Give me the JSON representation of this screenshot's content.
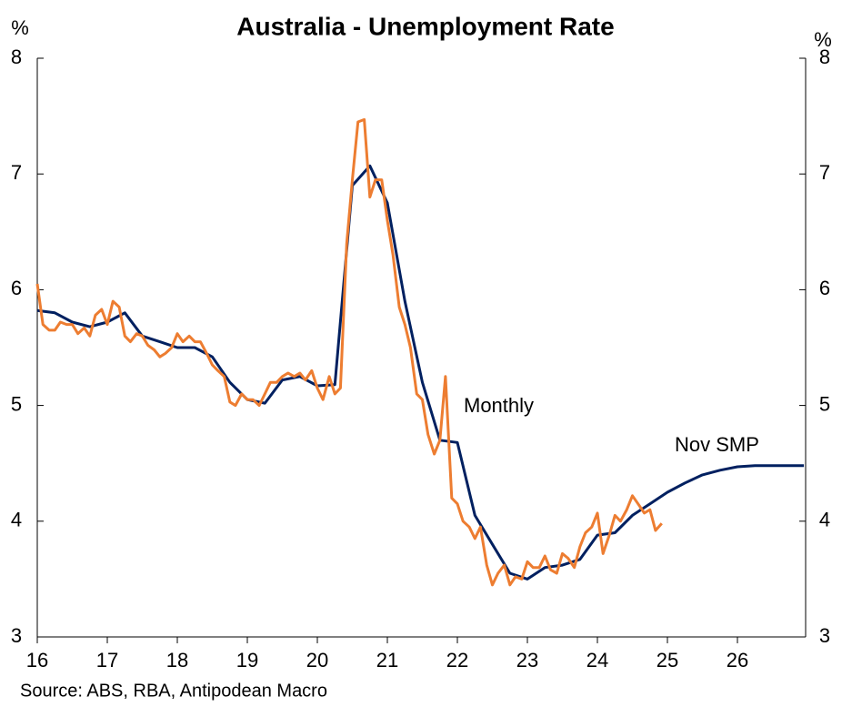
{
  "chart_data": {
    "type": "line",
    "title": "Australia - Unemployment Rate",
    "y_label": "%",
    "y2_label": "%",
    "source": "Source: ABS, RBA, Antipodean Macro",
    "xlim": [
      16,
      27
    ],
    "xticks": [
      16,
      17,
      18,
      19,
      20,
      21,
      22,
      23,
      24,
      25,
      26
    ],
    "ylim": [
      3,
      8
    ],
    "yticks": [
      3,
      4,
      5,
      6,
      7,
      8
    ],
    "y2lim": [
      3,
      8
    ],
    "y2ticks": [
      3,
      4,
      5,
      6,
      7,
      8
    ],
    "series": [
      {
        "name": "Monthly",
        "color": "#ED7D31",
        "x": [
          16,
          16.08,
          16.17,
          16.25,
          16.33,
          16.42,
          16.5,
          16.58,
          16.67,
          16.75,
          16.83,
          16.92,
          17,
          17.08,
          17.17,
          17.25,
          17.33,
          17.42,
          17.5,
          17.58,
          17.67,
          17.75,
          17.83,
          17.92,
          18,
          18.08,
          18.17,
          18.25,
          18.33,
          18.42,
          18.5,
          18.58,
          18.67,
          18.75,
          18.83,
          18.92,
          19,
          19.08,
          19.17,
          19.25,
          19.33,
          19.42,
          19.5,
          19.58,
          19.67,
          19.75,
          19.83,
          19.92,
          20,
          20.08,
          20.17,
          20.25,
          20.33,
          20.42,
          20.5,
          20.58,
          20.67,
          20.75,
          20.83,
          20.92,
          21,
          21.08,
          21.17,
          21.25,
          21.33,
          21.42,
          21.5,
          21.58,
          21.67,
          21.75,
          21.83,
          21.92,
          22,
          22.08,
          22.17,
          22.25,
          22.33,
          22.42,
          22.5,
          22.58,
          22.67,
          22.75,
          22.83,
          22.92,
          23,
          23.08,
          23.17,
          23.25,
          23.33,
          23.42,
          23.5,
          23.58,
          23.67,
          23.75,
          23.83,
          23.92,
          24,
          24.08,
          24.17,
          24.25,
          24.33,
          24.42,
          24.5,
          24.58,
          24.67,
          24.75,
          24.83,
          24.92
        ],
        "values": [
          6.05,
          5.7,
          5.65,
          5.65,
          5.72,
          5.7,
          5.7,
          5.62,
          5.67,
          5.6,
          5.78,
          5.83,
          5.7,
          5.9,
          5.85,
          5.6,
          5.55,
          5.62,
          5.6,
          5.52,
          5.48,
          5.42,
          5.45,
          5.5,
          5.62,
          5.55,
          5.6,
          5.55,
          5.55,
          5.45,
          5.35,
          5.3,
          5.25,
          5.03,
          5.0,
          5.1,
          5.05,
          5.05,
          5.0,
          5.1,
          5.2,
          5.2,
          5.25,
          5.28,
          5.25,
          5.28,
          5.22,
          5.3,
          5.15,
          5.05,
          5.25,
          5.1,
          5.15,
          6.4,
          6.95,
          7.45,
          7.47,
          6.8,
          6.95,
          6.95,
          6.6,
          6.3,
          5.85,
          5.7,
          5.5,
          5.1,
          5.05,
          4.75,
          4.58,
          4.7,
          5.25,
          4.2,
          4.15,
          4.0,
          3.95,
          3.85,
          3.95,
          3.62,
          3.45,
          3.55,
          3.62,
          3.45,
          3.52,
          3.5,
          3.65,
          3.6,
          3.6,
          3.7,
          3.58,
          3.55,
          3.72,
          3.68,
          3.6,
          3.78,
          3.9,
          3.95,
          4.07,
          3.72,
          3.88,
          4.05,
          4.0,
          4.1,
          4.22,
          4.15,
          4.07,
          4.1,
          3.92,
          3.98
        ]
      },
      {
        "name": "Nov SMP",
        "color": "#002060",
        "x": [
          16,
          16.25,
          16.5,
          16.75,
          17,
          17.25,
          17.5,
          17.75,
          18,
          18.25,
          18.5,
          18.75,
          19,
          19.25,
          19.5,
          19.75,
          20,
          20.25,
          20.5,
          20.75,
          21,
          21.25,
          21.5,
          21.75,
          22,
          22.25,
          22.5,
          22.75,
          23,
          23.25,
          23.5,
          23.75,
          24,
          24.25,
          24.5,
          24.75,
          25,
          25.25,
          25.5,
          25.75,
          26,
          26.25,
          26.5,
          26.75,
          26.95
        ],
        "values": [
          5.82,
          5.8,
          5.72,
          5.68,
          5.72,
          5.8,
          5.6,
          5.55,
          5.5,
          5.5,
          5.42,
          5.2,
          5.05,
          5.02,
          5.22,
          5.25,
          5.17,
          5.18,
          6.9,
          7.07,
          6.75,
          5.9,
          5.2,
          4.7,
          4.68,
          4.05,
          3.8,
          3.55,
          3.5,
          3.6,
          3.62,
          3.67,
          3.88,
          3.9,
          4.05,
          4.15,
          4.25,
          4.33,
          4.4,
          4.44,
          4.47,
          4.48,
          4.48,
          4.48,
          4.48
        ]
      }
    ]
  }
}
